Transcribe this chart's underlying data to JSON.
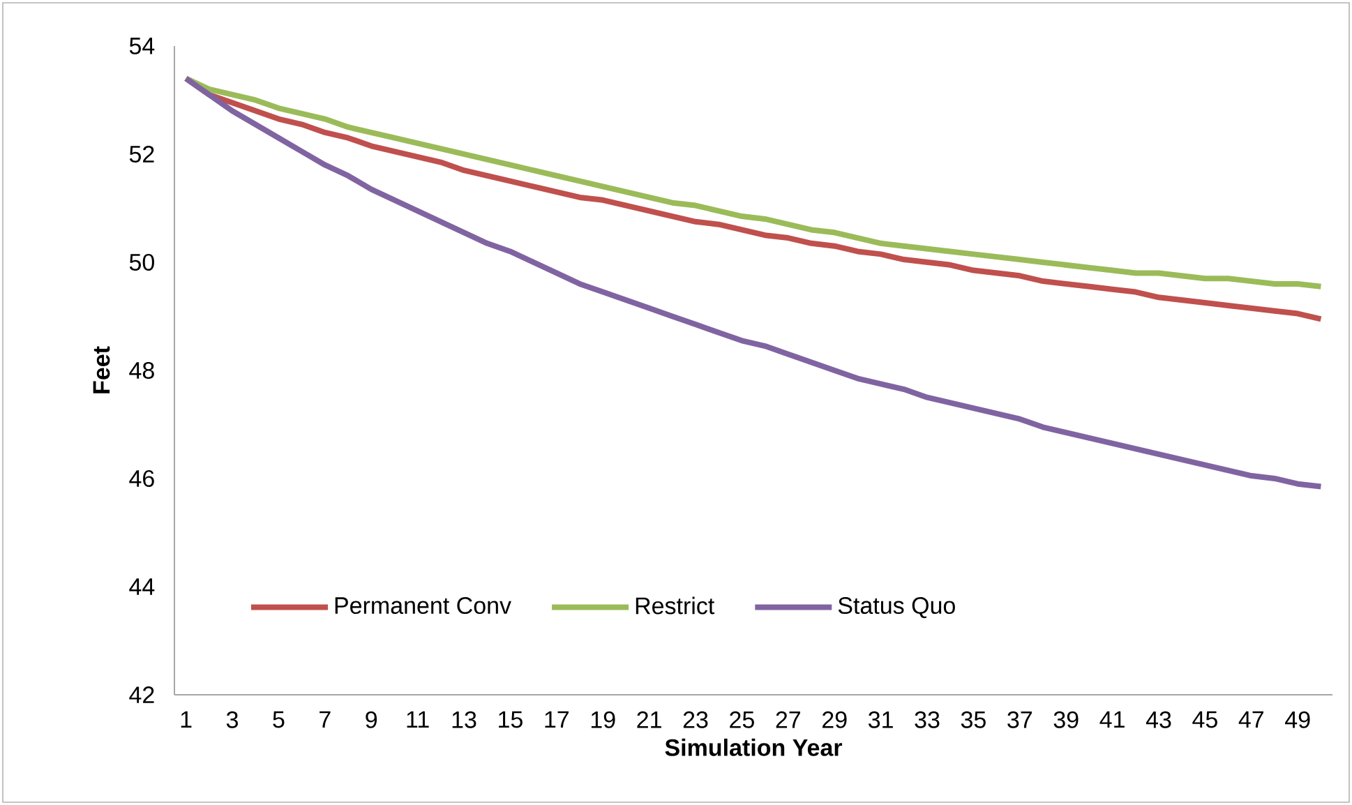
{
  "chart_data": {
    "type": "line",
    "xlabel": "Simulation Year",
    "ylabel": "Feet",
    "categories": [
      "1",
      null,
      "3",
      null,
      "5",
      null,
      "7",
      null,
      "9",
      null,
      "11",
      null,
      "13",
      null,
      "15",
      null,
      "17",
      null,
      "19",
      null,
      "21",
      null,
      "23",
      null,
      "25",
      null,
      "27",
      null,
      "29",
      null,
      "31",
      null,
      "33",
      null,
      "35",
      null,
      "37",
      null,
      "39",
      null,
      "41",
      null,
      "43",
      null,
      "45",
      null,
      "47",
      null,
      "49",
      null
    ],
    "series": [
      {
        "name": "Permanent Conv",
        "color": "#c0504d",
        "values": [
          53.4,
          53.1,
          52.95,
          52.8,
          52.65,
          52.55,
          52.4,
          52.3,
          52.15,
          52.05,
          51.95,
          51.85,
          51.7,
          51.6,
          51.5,
          51.4,
          51.3,
          51.2,
          51.15,
          51.05,
          50.95,
          50.85,
          50.75,
          50.7,
          50.6,
          50.5,
          50.45,
          50.35,
          50.3,
          50.2,
          50.15,
          50.05,
          50.0,
          49.95,
          49.85,
          49.8,
          49.75,
          49.65,
          49.6,
          49.55,
          49.5,
          49.45,
          49.35,
          49.3,
          49.25,
          49.2,
          49.15,
          49.1,
          49.05,
          48.95
        ]
      },
      {
        "name": "Restrict",
        "color": "#9bbb59",
        "values": [
          53.4,
          53.2,
          53.1,
          53.0,
          52.85,
          52.75,
          52.65,
          52.5,
          52.4,
          52.3,
          52.2,
          52.1,
          52.0,
          51.9,
          51.8,
          51.7,
          51.6,
          51.5,
          51.4,
          51.3,
          51.2,
          51.1,
          51.05,
          50.95,
          50.85,
          50.8,
          50.7,
          50.6,
          50.55,
          50.45,
          50.35,
          50.3,
          50.25,
          50.2,
          50.15,
          50.1,
          50.05,
          50.0,
          49.95,
          49.9,
          49.85,
          49.8,
          49.8,
          49.75,
          49.7,
          49.7,
          49.65,
          49.6,
          49.6,
          49.55
        ]
      },
      {
        "name": "Status Quo",
        "color": "#8064a2",
        "values": [
          53.4,
          53.1,
          52.8,
          52.55,
          52.3,
          52.05,
          51.8,
          51.6,
          51.35,
          51.15,
          50.95,
          50.75,
          50.55,
          50.35,
          50.2,
          50.0,
          49.8,
          49.6,
          49.45,
          49.3,
          49.15,
          49.0,
          48.85,
          48.7,
          48.55,
          48.45,
          48.3,
          48.15,
          48.0,
          47.85,
          47.75,
          47.65,
          47.5,
          47.4,
          47.3,
          47.2,
          47.1,
          46.95,
          46.85,
          46.75,
          46.65,
          46.55,
          46.45,
          46.35,
          46.25,
          46.15,
          46.05,
          46.0,
          45.9,
          45.85
        ]
      }
    ],
    "ylim": [
      42,
      54
    ],
    "yticks": [
      42,
      44,
      46,
      48,
      50,
      52,
      54
    ],
    "grid": false,
    "legend": "bottom left",
    "marker": "none",
    "line_style": "solid"
  }
}
